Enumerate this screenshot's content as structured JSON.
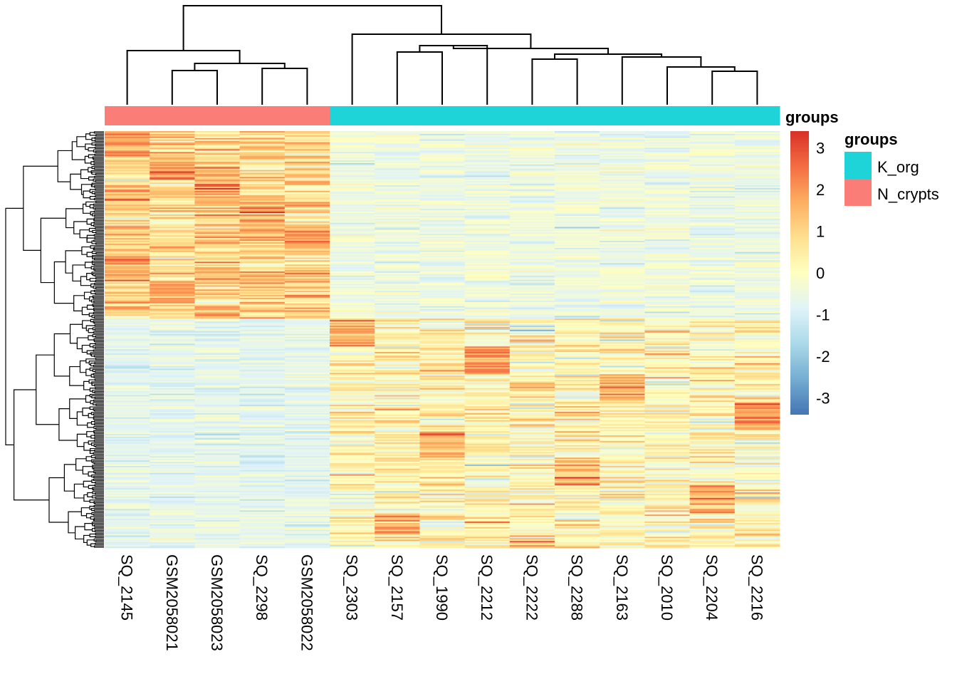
{
  "chart_data": {
    "type": "heatmap",
    "title": "",
    "columns": [
      "SQ_2145",
      "GSM2058021",
      "GSM2058023",
      "SQ_2298",
      "GSM2058022",
      "SQ_2303",
      "SQ_2157",
      "SQ_1990",
      "SQ_2212",
      "SQ_2222",
      "SQ_2288",
      "SQ_2163",
      "SQ_2010",
      "SQ_2204",
      "SQ_2216"
    ],
    "column_groups": [
      "N_crypts",
      "N_crypts",
      "N_crypts",
      "N_crypts",
      "N_crypts",
      "K_org",
      "K_org",
      "K_org",
      "K_org",
      "K_org",
      "K_org",
      "K_org",
      "K_org",
      "K_org",
      "K_org"
    ],
    "row_count_approx": 300,
    "row_clusters": [
      {
        "name": "upper",
        "fraction": 0.45,
        "high_in": [
          "SQ_2145",
          "GSM2058021",
          "GSM2058023",
          "SQ_2298",
          "GSM2058022"
        ]
      },
      {
        "name": "lower",
        "fraction": 0.55,
        "high_in": [
          "SQ_2303",
          "SQ_2157",
          "SQ_1990",
          "SQ_2212",
          "SQ_2222",
          "SQ_2288",
          "SQ_2163",
          "SQ_2010",
          "SQ_2204",
          "SQ_2216"
        ]
      }
    ],
    "color_scale": {
      "title": "groups",
      "min": -3.4,
      "max": 3.4,
      "ticks": [
        3,
        2,
        1,
        0,
        -1,
        -2,
        -3
      ],
      "colors": [
        "#d73027",
        "#f46d43",
        "#fdae61",
        "#fee090",
        "#ffffbf",
        "#e0f3f8",
        "#abd9e9",
        "#74add1",
        "#4575b4"
      ]
    },
    "annotation": {
      "title": "groups",
      "legend": [
        {
          "label": "K_org",
          "color": "#1fd4d8"
        },
        {
          "label": "N_crypts",
          "color": "#fa7d77"
        }
      ]
    },
    "column_dendrogram": true,
    "row_dendrogram": true,
    "legend_position": "right"
  }
}
